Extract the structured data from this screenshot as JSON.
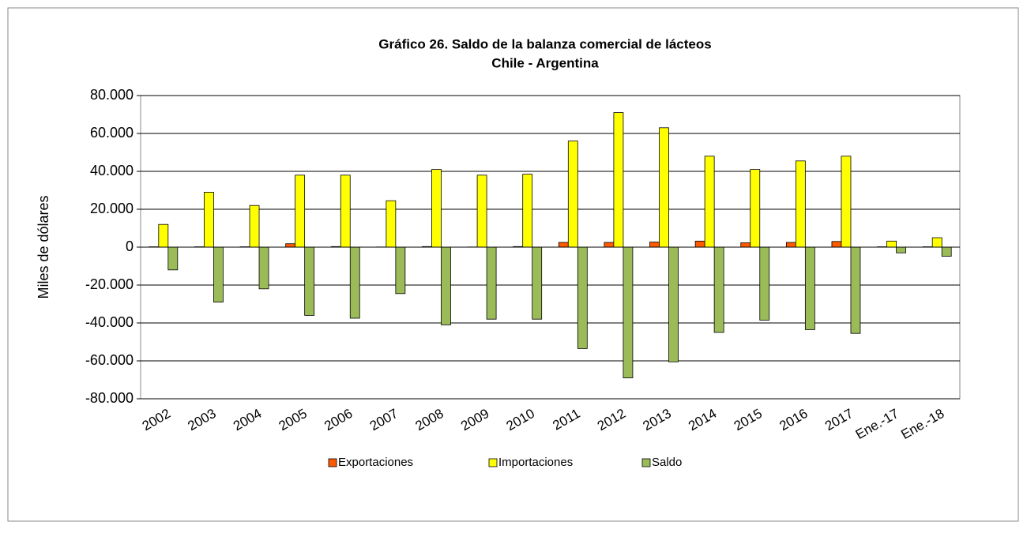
{
  "chart_data": {
    "type": "bar",
    "title": "Gráfico 26. Saldo de la balanza comercial de lácteos",
    "subtitle": "Chile - Argentina",
    "y_label": "Miles de dólares",
    "categories": [
      "2002",
      "2003",
      "2004",
      "2005",
      "2006",
      "2007",
      "2008",
      "2009",
      "2010",
      "2011",
      "2012",
      "2013",
      "2014",
      "2015",
      "2016",
      "2017",
      "Ene.-17",
      "Ene.-18"
    ],
    "series": [
      {
        "name": "Exportaciones",
        "color": "#ff5a00",
        "values": [
          200,
          200,
          200,
          1800,
          300,
          100,
          300,
          100,
          300,
          2500,
          2500,
          2700,
          3200,
          2300,
          2500,
          3000,
          200,
          200
        ]
      },
      {
        "name": "Importaciones",
        "color": "#ffff00",
        "values": [
          12000,
          29000,
          22000,
          38000,
          38000,
          24500,
          41000,
          38000,
          38500,
          56000,
          71000,
          63000,
          48000,
          41000,
          45500,
          48000,
          3200,
          5000
        ]
      },
      {
        "name": "Saldo",
        "color": "#9bbb59",
        "values": [
          -12000,
          -29000,
          -22000,
          -36000,
          -37500,
          -24500,
          -41000,
          -38000,
          -38000,
          -53500,
          -69000,
          -60500,
          -45000,
          -38500,
          -43500,
          -45500,
          -3000,
          -4800
        ]
      }
    ],
    "ylim": [
      -80000,
      80000
    ],
    "yticks": [
      {
        "value": -80000,
        "label": "-80.000"
      },
      {
        "value": -60000,
        "label": "-60.000"
      },
      {
        "value": -40000,
        "label": "-40.000"
      },
      {
        "value": -20000,
        "label": "-20.000"
      },
      0,
      {
        "value": 20000,
        "label": "20.000"
      },
      {
        "value": 40000,
        "label": "40.000"
      },
      {
        "value": 60000,
        "label": "60.000"
      },
      {
        "value": 80000,
        "label": "80.000"
      }
    ],
    "grid": true,
    "legend": "bottom"
  }
}
